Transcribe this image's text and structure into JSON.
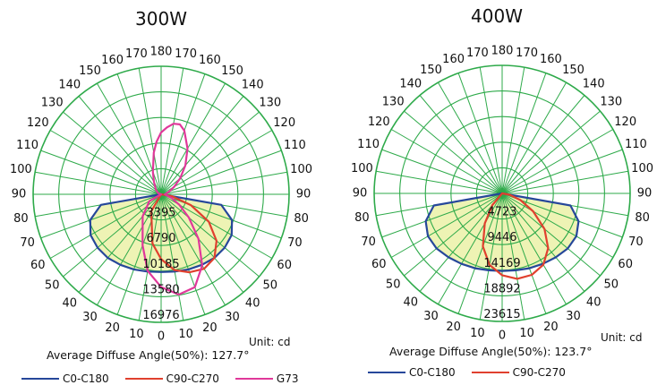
{
  "colors": {
    "grid": "#2eaa4a",
    "c0_c180": "#26479a",
    "c90_c270": "#e0402e",
    "g73": "#e0389a",
    "fill": "#eef3b4"
  },
  "chart_data": [
    {
      "type": "polar",
      "title": "300W",
      "unit_label": "Unit: cd",
      "average_diffuse_angle_label": "Average Diffuse Angle(50%): 127.7°",
      "angle_ticks": [
        "180",
        "170",
        "160",
        "150",
        "140",
        "130",
        "120",
        "110",
        "100",
        "90",
        "80",
        "70",
        "60",
        "50",
        "40",
        "30",
        "20",
        "10",
        "0"
      ],
      "radial_ticks": [
        3395,
        6790,
        10185,
        13580,
        16976
      ],
      "radial_max": 16976,
      "series": [
        {
          "name": "C0-C180",
          "color": "#26479a",
          "filled": true,
          "points": [
            [
              -90,
              0
            ],
            [
              -80,
              8100
            ],
            [
              -70,
              10000
            ],
            [
              -60,
              10800
            ],
            [
              -50,
              11000
            ],
            [
              -40,
              11000
            ],
            [
              -30,
              10800
            ],
            [
              -20,
              10600
            ],
            [
              -10,
              10400
            ],
            [
              0,
              10300
            ],
            [
              10,
              10400
            ],
            [
              20,
              10600
            ],
            [
              30,
              10800
            ],
            [
              40,
              11000
            ],
            [
              50,
              11000
            ],
            [
              60,
              10800
            ],
            [
              70,
              10000
            ],
            [
              80,
              8100
            ],
            [
              90,
              0
            ]
          ]
        },
        {
          "name": "C90-C270",
          "color": "#e0402e",
          "filled": false,
          "points": [
            [
              -50,
              0
            ],
            [
              -30,
              2600
            ],
            [
              -10,
              6600
            ],
            [
              0,
              8600
            ],
            [
              10,
              10200
            ],
            [
              20,
              11000
            ],
            [
              30,
              11400
            ],
            [
              40,
              11000
            ],
            [
              50,
              9600
            ],
            [
              60,
              7300
            ],
            [
              70,
              4200
            ],
            [
              80,
              1500
            ],
            [
              90,
              0
            ]
          ]
        },
        {
          "name": "G73",
          "color": "#e0389a",
          "filled": false,
          "points": [
            [
              -90,
              0
            ],
            [
              -60,
              1800
            ],
            [
              -40,
              3800
            ],
            [
              -20,
              7200
            ],
            [
              -10,
              10300
            ],
            [
              0,
              12300
            ],
            [
              10,
              13500
            ],
            [
              20,
              13100
            ],
            [
              30,
              10900
            ],
            [
              40,
              7700
            ],
            [
              50,
              4800
            ],
            [
              60,
              2800
            ],
            [
              70,
              1500
            ],
            [
              80,
              700
            ],
            [
              90,
              500
            ],
            [
              100,
              700
            ],
            [
              110,
              1200
            ],
            [
              120,
              2000
            ],
            [
              130,
              3300
            ],
            [
              140,
              5000
            ],
            [
              150,
              7000
            ],
            [
              160,
              9000
            ],
            [
              165,
              9600
            ],
            [
              170,
              9500
            ],
            [
              175,
              8900
            ],
            [
              180,
              8200
            ],
            [
              185,
              7000
            ],
            [
              190,
              5600
            ],
            [
              200,
              3200
            ],
            [
              210,
              1900
            ],
            [
              230,
              900
            ],
            [
              250,
              400
            ],
            [
              270,
              0
            ]
          ]
        }
      ]
    },
    {
      "type": "polar",
      "title": "400W",
      "unit_label": "Unit: cd",
      "average_diffuse_angle_label": "Average Diffuse Angle(50%): 123.7°",
      "angle_ticks": [
        "180",
        "170",
        "160",
        "150",
        "140",
        "130",
        "120",
        "110",
        "100",
        "90",
        "80",
        "70",
        "60",
        "50",
        "40",
        "30",
        "20",
        "10",
        "0"
      ],
      "radial_ticks": [
        4723,
        9446,
        14169,
        18892,
        23615
      ],
      "radial_max": 23615,
      "series": [
        {
          "name": "C0-C180",
          "color": "#26479a",
          "filled": true,
          "points": [
            [
              -90,
              0
            ],
            [
              -80,
              12800
            ],
            [
              -70,
              15000
            ],
            [
              -60,
              15800
            ],
            [
              -50,
              15800
            ],
            [
              -40,
              15400
            ],
            [
              -30,
              15000
            ],
            [
              -20,
              14700
            ],
            [
              -10,
              14400
            ],
            [
              0,
              14300
            ],
            [
              10,
              14400
            ],
            [
              20,
              14700
            ],
            [
              30,
              15000
            ],
            [
              40,
              15400
            ],
            [
              50,
              15800
            ],
            [
              60,
              15800
            ],
            [
              70,
              15000
            ],
            [
              80,
              12800
            ],
            [
              90,
              0
            ]
          ]
        },
        {
          "name": "C90-C270",
          "color": "#e0402e",
          "filled": false,
          "points": [
            [
              -50,
              0
            ],
            [
              -40,
              2800
            ],
            [
              -30,
              6400
            ],
            [
              -20,
              10400
            ],
            [
              -10,
              13400
            ],
            [
              0,
              15100
            ],
            [
              10,
              16000
            ],
            [
              20,
              16000
            ],
            [
              30,
              15200
            ],
            [
              40,
              13200
            ],
            [
              50,
              10200
            ],
            [
              60,
              6600
            ],
            [
              70,
              3600
            ],
            [
              80,
              1400
            ],
            [
              90,
              0
            ]
          ]
        }
      ]
    }
  ]
}
